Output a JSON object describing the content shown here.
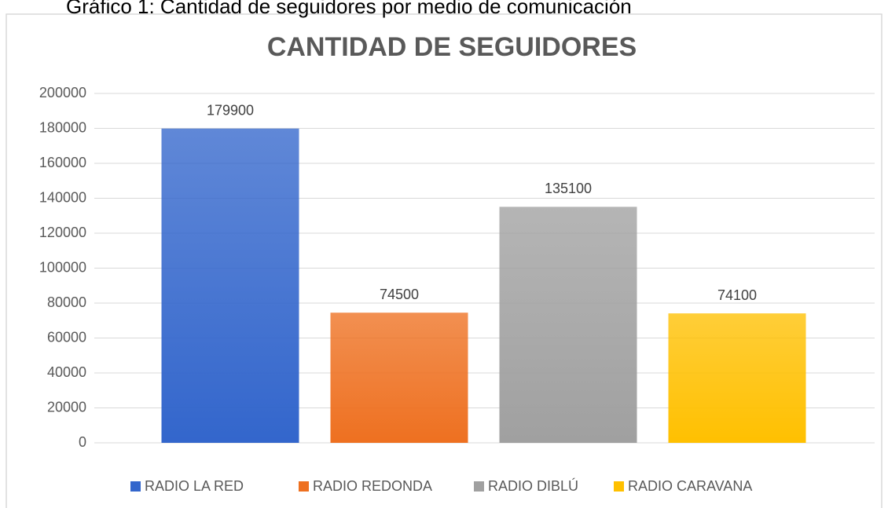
{
  "caption": "Gráfico 1: Cantidad de seguidores por medio de comunicación",
  "chart_data": {
    "type": "bar",
    "title": "CANTIDAD DE SEGUIDORES",
    "categories": [
      "RADIO LA RED",
      "RADIO REDONDA",
      "RADIO DIBLÚ",
      "RADIO CARAVANA"
    ],
    "values": [
      179900,
      74500,
      135100,
      74100
    ],
    "colors": [
      "#3366cc",
      "#ee7020",
      "#a0a0a0",
      "#ffc000"
    ],
    "ylim": [
      0,
      200000
    ],
    "yticks": [
      0,
      20000,
      40000,
      60000,
      80000,
      100000,
      120000,
      140000,
      160000,
      180000,
      200000
    ],
    "grid": true,
    "legend": "bottom"
  }
}
